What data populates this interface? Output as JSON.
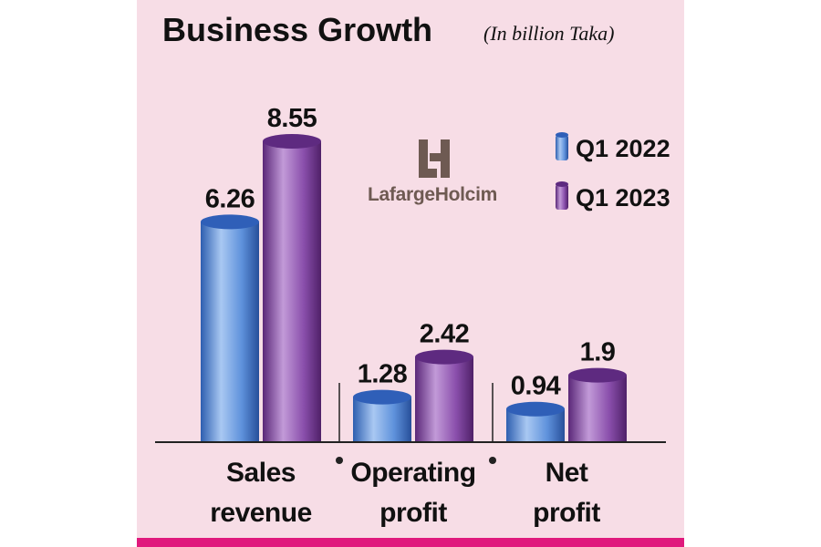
{
  "chart_data": {
    "type": "bar",
    "title": "Business Growth",
    "subtitle": "(In billion Taka)",
    "categories": [
      [
        "Sales",
        "revenue"
      ],
      [
        "Operating",
        "profit"
      ],
      [
        "Net",
        "profit"
      ]
    ],
    "series": [
      {
        "name": "Q1 2022",
        "values": [
          6.26,
          1.28,
          0.94
        ],
        "color": "#4a7fd0"
      },
      {
        "name": "Q1 2023",
        "values": [
          8.55,
          2.42,
          1.9
        ],
        "color": "#7a3f98"
      }
    ],
    "value_labels": [
      [
        "6.26",
        "1.28",
        "0.94"
      ],
      [
        "8.55",
        "2.42",
        "1.9"
      ]
    ],
    "ylim": [
      0,
      9.5
    ],
    "grid": false,
    "legend_position": "top-right",
    "logo_text": "LafargeHolcim",
    "colors": {
      "background": "#f7dde6",
      "bottom_bar": "#e0197d"
    }
  }
}
